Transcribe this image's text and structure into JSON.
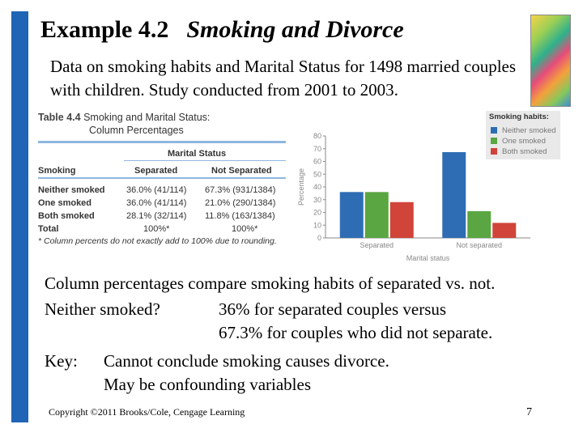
{
  "slide": {
    "title": "Example 4.2",
    "subtitle": "Smoking and Divorce",
    "intro": "Data on smoking habits and Marital Status for 1498 married couples with children. Study conducted from 2001 to 2003.",
    "accent_color": "#1f64b5"
  },
  "table": {
    "number": "Table 4.4",
    "title_line1": "Smoking and Marital Status:",
    "title_line2": "Column Percentages",
    "group_header": "Marital Status",
    "row_header": "Smoking",
    "col_headers": [
      "Separated",
      "Not Separated"
    ],
    "rows": [
      {
        "label": "Neither smoked",
        "separated": "36.0% (41/114)",
        "not_separated": "67.3% (931/1384)"
      },
      {
        "label": "One smoked",
        "separated": "36.0% (41/114)",
        "not_separated": "21.0% (290/1384)"
      },
      {
        "label": "Both smoked",
        "separated": "28.1% (32/114)",
        "not_separated": "11.8% (163/1384)"
      },
      {
        "label": "Total",
        "separated": "100%*",
        "not_separated": "100%*"
      }
    ],
    "footnote": "* Column percents do not exactly add to 100% due to rounding."
  },
  "chart_data": {
    "type": "bar",
    "categories": [
      "Separated",
      "Not separated"
    ],
    "series": [
      {
        "name": "Neither smoked",
        "values": [
          36.0,
          67.3
        ],
        "color": "#2e6db4"
      },
      {
        "name": "One smoked",
        "values": [
          36.0,
          21.0
        ],
        "color": "#5aa642"
      },
      {
        "name": "Both smoked",
        "values": [
          28.1,
          11.8
        ],
        "color": "#d0443a"
      }
    ],
    "title": "",
    "xlabel": "Marital status",
    "ylabel": "Percentage",
    "ylim": [
      0,
      80
    ],
    "yticks": [
      "0",
      "10",
      "20",
      "30",
      "40",
      "50",
      "60",
      "70",
      "80"
    ],
    "legend_title": "Smoking habits:",
    "legend_position": "top-right",
    "grid": false
  },
  "body": {
    "line1": "Column percentages compare smoking habits of separated vs. not.",
    "line2_label": "Neither smoked?",
    "line2_value": "36% for separated couples versus",
    "line3": "67.3% for couples who did not separate.",
    "key_label": "Key:",
    "key_line1": "Cannot conclude smoking causes divorce.",
    "key_line2": "May be confounding variables"
  },
  "footer": {
    "copyright": "Copyright ©2011 Brooks/Cole, Cengage Learning",
    "page_number": "7"
  }
}
